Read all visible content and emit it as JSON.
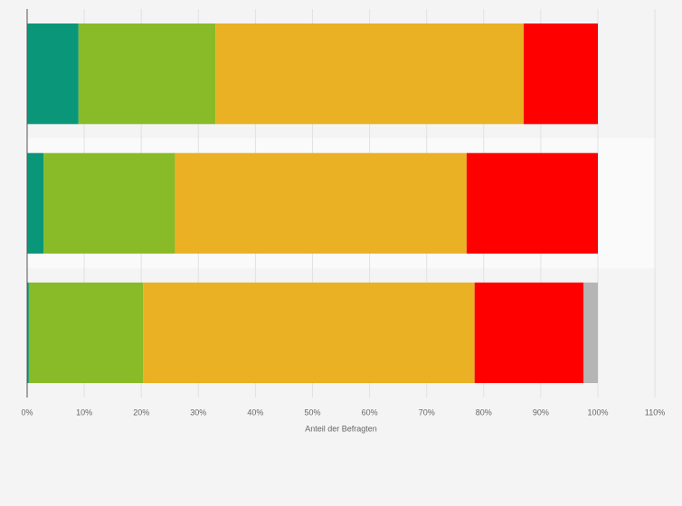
{
  "chart_data": {
    "type": "stacked-barh",
    "categories": [
      null,
      null,
      null
    ],
    "series": [
      {
        "color": "#0a9678",
        "values": [
          9.0,
          2.9,
          0.3
        ]
      },
      {
        "color": "#88bb27",
        "values": [
          24.0,
          23.0,
          20.0
        ]
      },
      {
        "color": "#e9b123",
        "values": [
          54.0,
          51.1,
          58.1
        ]
      },
      {
        "color": "#fe0000",
        "values": [
          13.0,
          23.0,
          19.1
        ]
      },
      {
        "color": "#b5b5b5",
        "values": [
          0,
          0,
          2.5
        ]
      }
    ],
    "xlabel": "Anteil der Befragten",
    "xlim": [
      0,
      110
    ],
    "xticks": [
      {
        "value": 0,
        "label": "0%"
      },
      {
        "value": 10,
        "label": "10%"
      },
      {
        "value": 20,
        "label": "20%"
      },
      {
        "value": 30,
        "label": "30%"
      },
      {
        "value": 40,
        "label": "40%"
      },
      {
        "value": 50,
        "label": "50%"
      },
      {
        "value": 60,
        "label": "60%"
      },
      {
        "value": 70,
        "label": "70%"
      },
      {
        "value": 80,
        "label": "80%"
      },
      {
        "value": 90,
        "label": "90%"
      },
      {
        "value": 100,
        "label": "100%"
      },
      {
        "value": 110,
        "label": "110%"
      }
    ],
    "grid": true
  }
}
